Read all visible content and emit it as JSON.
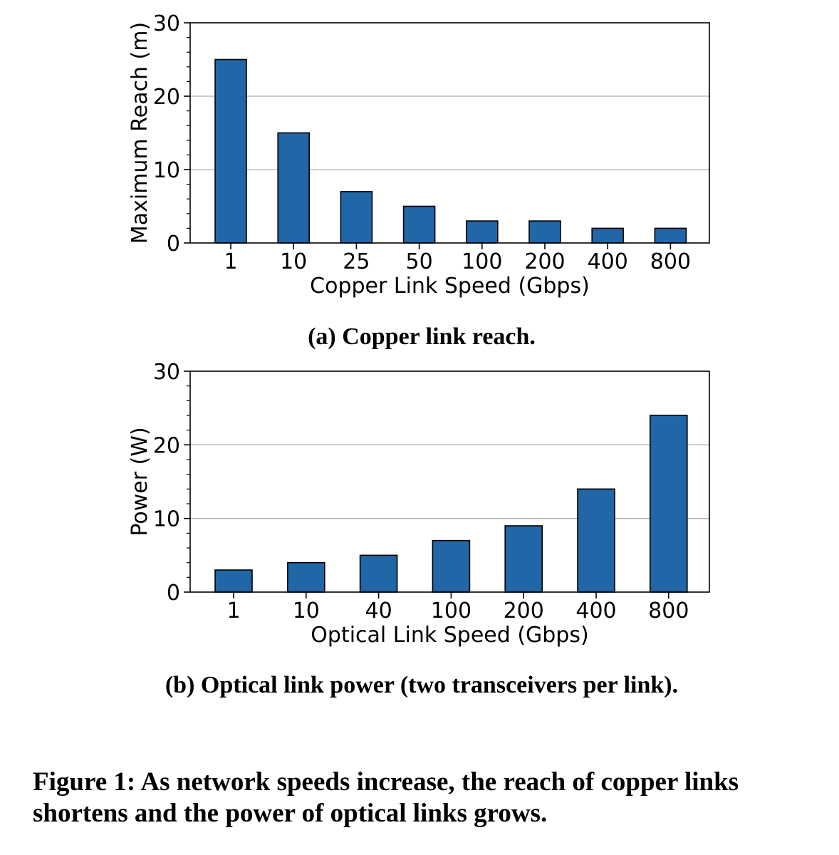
{
  "chart_data": [
    {
      "type": "bar",
      "categories": [
        "1",
        "10",
        "25",
        "50",
        "100",
        "200",
        "400",
        "800"
      ],
      "values": [
        25,
        15,
        7,
        5,
        3,
        3,
        2,
        2
      ],
      "xlabel": "Copper Link Speed (Gbps)",
      "ylabel": "Maximum Reach (m)",
      "ylim": [
        0,
        30
      ],
      "yticks": [
        "0",
        "10",
        "20",
        "30"
      ],
      "grid": "horizontal",
      "bar_color": "#2166a6",
      "caption": "(a) Copper link reach."
    },
    {
      "type": "bar",
      "categories": [
        "1",
        "10",
        "40",
        "100",
        "200",
        "400",
        "800"
      ],
      "values": [
        3,
        4,
        5,
        7,
        9,
        14,
        24
      ],
      "xlabel": "Optical Link Speed (Gbps)",
      "ylabel": "Power (W)",
      "ylim": [
        0,
        30
      ],
      "yticks": [
        "0",
        "10",
        "20",
        "30"
      ],
      "grid": "horizontal",
      "bar_color": "#2166a6",
      "caption": "(b) Optical link power (two transceivers per link)."
    }
  ],
  "figure_caption": "Figure 1: As network speeds increase, the reach of copper links shortens and the power of optical links grows."
}
